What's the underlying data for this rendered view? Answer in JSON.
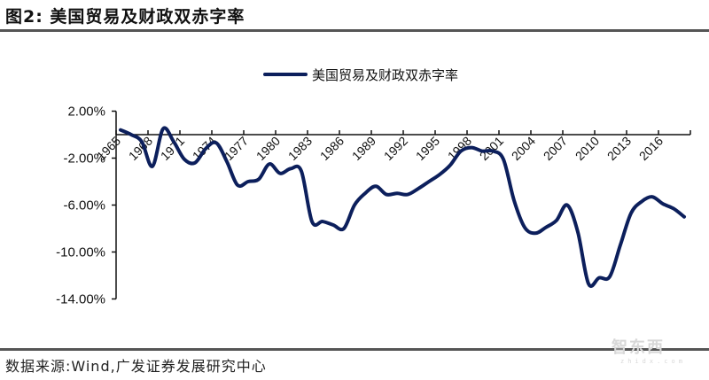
{
  "header": {
    "title": "图2:  美国贸易及财政双赤字率"
  },
  "footer": {
    "source": "数据来源:Wind,广发证券发展研究中心",
    "watermark": "智东西",
    "watermark_sub": "zhidx.com"
  },
  "colors": {
    "line": "#0c1f5c",
    "axis": "#111111",
    "rule": "#555555"
  },
  "chart_data": {
    "type": "line",
    "title": "美国贸易及财政双赤字率",
    "xlabel": "",
    "ylabel": "",
    "legend": [
      "美国贸易及财政双赤字率"
    ],
    "legend_position": "top",
    "grid": false,
    "ylim": [
      -14,
      2
    ],
    "yticks": [
      "2.00%",
      "-2.00%",
      "-6.00%",
      "-10.00%",
      "-14.00%"
    ],
    "xticks": [
      "1965",
      "1968",
      "1971",
      "1974",
      "1977",
      "1980",
      "1983",
      "1986",
      "1989",
      "1992",
      "1995",
      "1998",
      "2001",
      "2004",
      "2007",
      "2010",
      "2013",
      "2016"
    ],
    "x": [
      1965,
      1966,
      1967,
      1968,
      1969,
      1970,
      1971,
      1972,
      1973,
      1974,
      1975,
      1976,
      1977,
      1978,
      1979,
      1980,
      1981,
      1982,
      1983,
      1984,
      1985,
      1986,
      1987,
      1988,
      1989,
      1990,
      1991,
      1992,
      1993,
      1994,
      1995,
      1996,
      1997,
      1998,
      1999,
      2000,
      2001,
      2002,
      2003,
      2004,
      2005,
      2006,
      2007,
      2008,
      2009,
      2010,
      2011,
      2012,
      2013,
      2014,
      2015,
      2016,
      2017,
      2018
    ],
    "series": [
      {
        "name": "美国贸易及财政双赤字率",
        "values": [
          0.4,
          0.0,
          -0.6,
          -2.7,
          0.5,
          -0.6,
          -2.1,
          -2.4,
          -1.2,
          -0.7,
          -2.3,
          -4.3,
          -4.0,
          -3.8,
          -2.5,
          -3.3,
          -2.9,
          -3.1,
          -7.4,
          -7.4,
          -7.7,
          -8.0,
          -6.0,
          -5.0,
          -4.4,
          -5.1,
          -5.0,
          -5.1,
          -4.6,
          -4.0,
          -3.4,
          -2.6,
          -1.4,
          -1.1,
          -1.4,
          -1.4,
          -2.1,
          -5.6,
          -7.9,
          -8.4,
          -7.9,
          -7.3,
          -6.0,
          -8.3,
          -12.7,
          -12.2,
          -12.1,
          -9.4,
          -6.7,
          -5.7,
          -5.3,
          -5.9,
          -6.3,
          -7.0
        ]
      }
    ]
  }
}
